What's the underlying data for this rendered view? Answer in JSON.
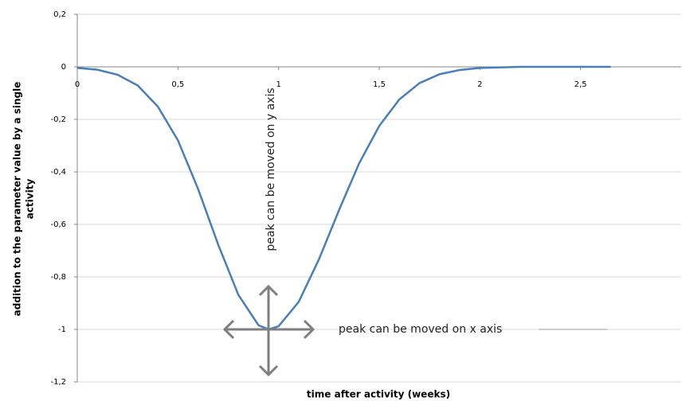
{
  "chart_data": {
    "type": "line",
    "xlabel": "time after activity (weeks)",
    "ylabel": [
      "addition to the parameter value by a single",
      "activity"
    ],
    "annotations": [
      "peak can be moved on y axis",
      "peak can be moved on x axis"
    ],
    "x": [
      0,
      0.1,
      0.2,
      0.3,
      0.4,
      0.5,
      0.6,
      0.7,
      0.8,
      0.9,
      0.95,
      1.0,
      1.1,
      1.2,
      1.3,
      1.4,
      1.5,
      1.6,
      1.7,
      1.8,
      1.9,
      2.0,
      2.2,
      2.4,
      2.65
    ],
    "series": [
      {
        "color": "#4a7ebb",
        "values": [
          -0.004,
          -0.011,
          -0.03,
          -0.071,
          -0.151,
          -0.28,
          -0.465,
          -0.677,
          -0.868,
          -0.984,
          -1,
          -0.988,
          -0.895,
          -0.734,
          -0.546,
          -0.368,
          -0.225,
          -0.124,
          -0.062,
          -0.028,
          -0.012,
          -0.004,
          0,
          0,
          0
        ]
      }
    ],
    "xlim": [
      0,
      3
    ],
    "xticks": [
      0,
      {
        "value": 0.5,
        "label": "0,5"
      },
      1,
      {
        "value": 1.5,
        "label": "1,5"
      },
      2,
      {
        "value": 2.5,
        "label": "2,5"
      }
    ],
    "ylim": [
      -1.2,
      0.2
    ],
    "yticks": [
      {
        "value": 0.2,
        "label": "0,2"
      },
      0,
      {
        "value": -0.2,
        "label": "-0,2"
      },
      {
        "value": -0.4,
        "label": "-0,4"
      },
      {
        "value": -0.6,
        "label": "-0,6"
      },
      {
        "value": -0.8,
        "label": "-0,8"
      },
      -1,
      {
        "value": -1.2,
        "label": "-1,2"
      }
    ],
    "grid": true
  }
}
